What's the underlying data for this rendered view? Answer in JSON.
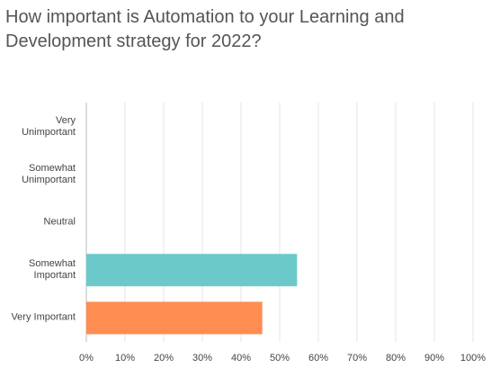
{
  "chart_data": {
    "type": "bar",
    "orientation": "horizontal",
    "title": "How important is Automation to your Learning and Development strategy for 2022?",
    "categories": [
      "Very Unimportant",
      "Somewhat Unimportant",
      "Neutral",
      "Somewhat Important",
      "Very Important"
    ],
    "values": [
      0,
      0,
      0,
      54.5,
      45.5
    ],
    "colors": [
      "#6cc9ca",
      "#6cc9ca",
      "#6cc9ca",
      "#6cc9ca",
      "#ff8c50"
    ],
    "xlim": [
      0,
      100
    ],
    "xticks": [
      {
        "value": 0,
        "label": "0%"
      },
      {
        "value": 10,
        "label": "10%"
      },
      {
        "value": 20,
        "label": "20%"
      },
      {
        "value": 30,
        "label": "30%"
      },
      {
        "value": 40,
        "label": "40%"
      },
      {
        "value": 50,
        "label": "50%"
      },
      {
        "value": 60,
        "label": "60%"
      },
      {
        "value": 70,
        "label": "70%"
      },
      {
        "value": 80,
        "label": "80%"
      },
      {
        "value": 90,
        "label": "90%"
      },
      {
        "value": 100,
        "label": "100%"
      }
    ],
    "grid": true
  }
}
